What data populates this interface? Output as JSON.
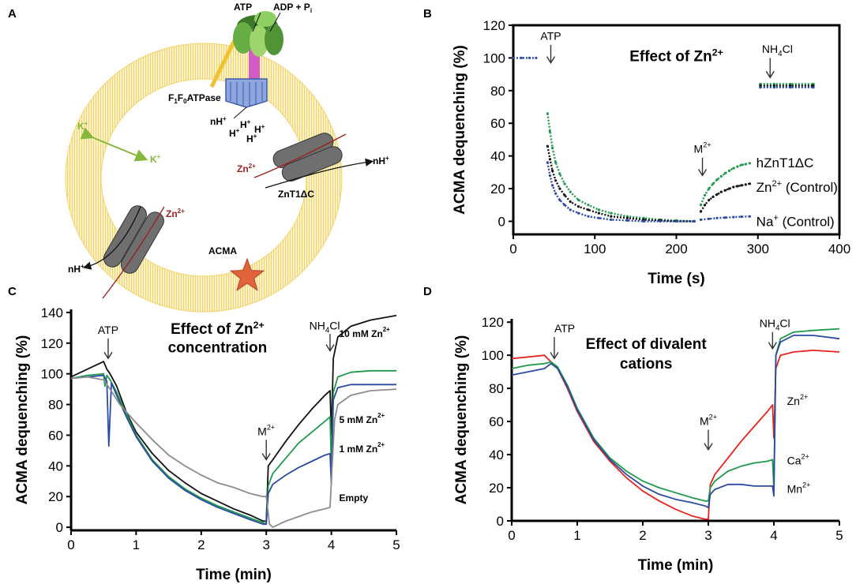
{
  "panel_a": {
    "label": "A",
    "atp": "ATP",
    "adp": "ADP + P",
    "adp_sub": "i",
    "f1f0_main": "F",
    "f1f0_sub1": "1",
    "f1f0_mid": "F",
    "f1f0_sub2": "0",
    "f1f0_rest": "ATPase",
    "nh_plus": "nH",
    "h_plus": "H",
    "k_plus": "K",
    "zn2": "Zn",
    "sup_plus": "+",
    "sup_2plus": "2+",
    "znt1": "ZnT1ΔC",
    "acma": "ACMA"
  },
  "chart_data": [
    {
      "panel": "B",
      "type": "scatter",
      "title": "Effect of Zn²⁺",
      "title_main": "Effect of Zn",
      "title_sup": "2+",
      "xlabel": "Time (s)",
      "ylabel": "ACMA dequenching (%)",
      "xlim": [
        0,
        400
      ],
      "ylim": [
        -8,
        120
      ],
      "xticks": [
        "0",
        "100",
        "200",
        "300",
        "400"
      ],
      "yticks": [
        "0",
        "20",
        "40",
        "60",
        "80",
        "100",
        "120"
      ],
      "annotations": {
        "atp": "ATP",
        "m2_main": "M",
        "m2_sup": "2+",
        "nh4_a": "NH",
        "nh4_sub": "4",
        "nh4_b": "Cl"
      },
      "series": [
        {
          "name": "hZnT1ΔC",
          "legend_main": "hZnT1ΔC",
          "legend_sup": "",
          "legend_tail": "",
          "color": "#1f9a4b",
          "segments": [
            {
              "x": [
                42,
                45,
                48,
                52,
                57,
                63,
                70,
                80,
                92,
                105,
                120,
                140,
                160,
                180,
                200,
                222
              ],
              "y": [
                66,
                55,
                45,
                36,
                29,
                23,
                18,
                13,
                10,
                7,
                5,
                3,
                2,
                1,
                0.5,
                0
              ]
            },
            {
              "x": [
                230,
                235,
                240,
                245,
                250,
                255,
                260,
                265,
                270,
                275,
                280,
                285,
                290
              ],
              "y": [
                10,
                16,
                20,
                23,
                25.5,
                27.5,
                29.5,
                31,
                32.5,
                33.5,
                34.5,
                35,
                35.5
              ]
            },
            {
              "x": [
                303,
                320,
                340,
                368
              ],
              "y": [
                84,
                84,
                84,
                84
              ]
            }
          ]
        },
        {
          "name": "Zn²⁺ (Control)",
          "legend_main": "Zn",
          "legend_sup": "2+",
          "legend_tail": " (Control)",
          "color": "#111111",
          "segments": [
            {
              "x": [
                42,
                45,
                48,
                52,
                57,
                63,
                70,
                80,
                92,
                105,
                120,
                140,
                160,
                180,
                200,
                222
              ],
              "y": [
                46,
                38,
                31,
                25,
                20,
                16,
                12,
                9,
                7,
                5,
                3,
                2,
                1,
                0.5,
                0,
                0
              ]
            },
            {
              "x": [
                230,
                235,
                240,
                245,
                250,
                255,
                260,
                265,
                270,
                275,
                280,
                285,
                290
              ],
              "y": [
                6,
                10,
                13,
                15,
                16.5,
                18,
                19,
                20,
                21,
                21.5,
                22,
                22.5,
                23
              ]
            },
            {
              "x": [
                303,
                320,
                340,
                368
              ],
              "y": [
                83,
                83,
                83,
                83
              ]
            }
          ]
        },
        {
          "name": "Na⁺ (Control)",
          "legend_main": "Na",
          "legend_sup": "+",
          "legend_tail": " (Control)",
          "color": "#2b4aa3",
          "segments": [
            {
              "x": [
                0,
                10,
                20,
                28
              ],
              "y": [
                100,
                100,
                100,
                100
              ]
            },
            {
              "x": [
                42,
                45,
                48,
                52,
                57,
                63,
                70,
                80,
                92,
                105,
                120,
                140,
                160,
                180,
                200,
                222
              ],
              "y": [
                36,
                28,
                22,
                17,
                13,
                10,
                7,
                5,
                3,
                2,
                1,
                0.5,
                0,
                0,
                0,
                0
              ]
            },
            {
              "x": [
                230,
                240,
                250,
                260,
                270,
                280,
                290
              ],
              "y": [
                1,
                1.5,
                2,
                2.3,
                2.6,
                2.8,
                3
              ]
            },
            {
              "x": [
                303,
                320,
                340,
                368
              ],
              "y": [
                82,
                82,
                82,
                82
              ]
            }
          ]
        }
      ]
    },
    {
      "panel": "C",
      "type": "line",
      "title": "Effect of Zn²⁺ concentration",
      "title_main": "Effect of Zn",
      "title_sup": "2+",
      "title_line2": "concentration",
      "xlabel": "Time (min)",
      "ylabel": "ACMA dequenching (%)",
      "xlim": [
        0,
        5
      ],
      "ylim": [
        -2,
        142
      ],
      "xticks": [
        "0",
        "1",
        "2",
        "3",
        "4",
        "5"
      ],
      "yticks": [
        "0",
        "20",
        "40",
        "60",
        "80",
        "100",
        "120",
        "140"
      ],
      "annotations": {
        "atp": "ATP",
        "m2_main": "M",
        "m2_sup": "2+",
        "nh4_a": "NH",
        "nh4_sub": "4",
        "nh4_b": "Cl"
      },
      "series": [
        {
          "name": "10 mM Zn²⁺",
          "legend_main": "10 mM Zn",
          "legend_sup": "2+",
          "color": "#111111",
          "x": [
            0,
            0.25,
            0.5,
            0.55,
            0.6,
            0.7,
            0.85,
            1.0,
            1.25,
            1.5,
            1.75,
            2.0,
            2.25,
            2.5,
            2.75,
            2.95,
            3.0,
            3.03,
            3.1,
            3.3,
            3.5,
            3.7,
            3.9,
            3.98,
            4.0,
            4.03,
            4.1,
            4.3,
            4.6,
            5.0
          ],
          "y": [
            98,
            103,
            108,
            103,
            100,
            92,
            75,
            62,
            48,
            37,
            29,
            22,
            17,
            12,
            8,
            4,
            4,
            40,
            44,
            56,
            67,
            77,
            86,
            89,
            60,
            110,
            124,
            131,
            135,
            138
          ]
        },
        {
          "name": "5 mM Zn²⁺",
          "legend_main": "5 mM Zn",
          "legend_sup": "2+",
          "color": "#1f9a4b",
          "x": [
            0,
            0.25,
            0.5,
            0.52,
            0.55,
            0.6,
            0.7,
            0.85,
            1.0,
            1.25,
            1.5,
            1.75,
            2.0,
            2.25,
            2.5,
            2.75,
            2.95,
            3.0,
            3.03,
            3.1,
            3.3,
            3.5,
            3.7,
            3.9,
            3.98,
            4.0,
            4.03,
            4.1,
            4.3,
            4.6,
            5.0
          ],
          "y": [
            97,
            99,
            100,
            92,
            99,
            96,
            88,
            74,
            60,
            44,
            33,
            25,
            19,
            14,
            10,
            6,
            3,
            2,
            27,
            35,
            45,
            55,
            62,
            69,
            72,
            40,
            88,
            98,
            101,
            102,
            102
          ]
        },
        {
          "name": "1 mM Zn²⁺",
          "legend_main": "1 mM Zn",
          "legend_sup": "2+",
          "color": "#2b4aa3",
          "x": [
            0,
            0.25,
            0.5,
            0.55,
            0.58,
            0.62,
            0.7,
            0.85,
            1.0,
            1.25,
            1.5,
            1.75,
            2.0,
            2.25,
            2.5,
            2.75,
            2.95,
            3.0,
            3.03,
            3.1,
            3.3,
            3.5,
            3.7,
            3.9,
            3.98,
            4.0,
            4.03,
            4.1,
            4.3,
            4.6,
            5.0
          ],
          "y": [
            97,
            98,
            99,
            95,
            53,
            94,
            86,
            72,
            59,
            43,
            32,
            24,
            18,
            13,
            9,
            5,
            2,
            2,
            22,
            28,
            34,
            39,
            43,
            47,
            48,
            28,
            83,
            91,
            93,
            93,
            93
          ]
        },
        {
          "name": "Empty",
          "legend_main": "Empty",
          "legend_sup": "",
          "color": "#8c8c8c",
          "x": [
            0,
            0.25,
            0.5,
            0.6,
            0.75,
            1.0,
            1.25,
            1.5,
            1.75,
            2.0,
            2.25,
            2.5,
            2.75,
            2.95,
            3.0,
            3.05,
            3.1,
            3.3,
            3.5,
            3.7,
            3.9,
            3.98,
            4.0,
            4.05,
            4.1,
            4.3,
            4.6,
            5.0
          ],
          "y": [
            97,
            98,
            96,
            90,
            80,
            68,
            57,
            47,
            40,
            34,
            29,
            26,
            22,
            20,
            20,
            2,
            0,
            4,
            7,
            10,
            12,
            13,
            30,
            70,
            80,
            86,
            89,
            90
          ]
        }
      ]
    },
    {
      "panel": "D",
      "type": "line",
      "title": "Effect of divalent cations",
      "title_line1": "Effect of divalent",
      "title_line2": "cations",
      "xlabel": "Time (min)",
      "ylabel": "ACMA dequenching (%)",
      "xlim": [
        0,
        5
      ],
      "ylim": [
        0,
        122
      ],
      "xticks": [
        "0",
        "1",
        "2",
        "3",
        "4",
        "5"
      ],
      "yticks": [
        "0",
        "20",
        "40",
        "60",
        "80",
        "100",
        "120"
      ],
      "annotations": {
        "atp": "ATP",
        "m2_main": "M",
        "m2_sup": "2+",
        "nh4_a": "NH",
        "nh4_sub": "4",
        "nh4_b": "Cl"
      },
      "series": [
        {
          "name": "Zn²⁺",
          "legend_main": "Zn",
          "legend_sup": "2+",
          "color": "#e8231d",
          "x": [
            0,
            0.25,
            0.5,
            0.6,
            0.7,
            0.85,
            1.0,
            1.25,
            1.5,
            1.75,
            2.0,
            2.25,
            2.5,
            2.75,
            2.95,
            3.0,
            3.03,
            3.1,
            3.3,
            3.5,
            3.7,
            3.9,
            3.98,
            4.0,
            4.03,
            4.1,
            4.3,
            4.6,
            5.0
          ],
          "y": [
            98,
            99,
            100,
            96,
            92,
            80,
            66,
            48,
            36,
            26,
            18,
            12,
            7,
            3,
            1,
            1,
            22,
            28,
            38,
            48,
            57,
            66,
            70,
            50,
            92,
            100,
            102,
            103,
            102
          ]
        },
        {
          "name": "Ca²⁺",
          "legend_main": "Ca",
          "legend_sup": "2+",
          "color": "#1f9a4b",
          "x": [
            0,
            0.25,
            0.5,
            0.6,
            0.7,
            0.85,
            1.0,
            1.25,
            1.5,
            1.75,
            2.0,
            2.25,
            2.5,
            2.75,
            2.95,
            3.0,
            3.03,
            3.1,
            3.3,
            3.5,
            3.7,
            3.9,
            3.98,
            4.0,
            4.03,
            4.1,
            4.3,
            4.6,
            5.0
          ],
          "y": [
            92,
            94,
            95,
            96,
            93,
            82,
            68,
            50,
            38,
            30,
            24,
            20,
            17,
            14,
            12,
            12,
            20,
            24,
            30,
            33,
            35,
            36,
            37,
            20,
            100,
            110,
            114,
            115,
            116
          ]
        },
        {
          "name": "Mn²⁺",
          "legend_main": "Mn",
          "legend_sup": "2+",
          "color": "#2b4aa3",
          "x": [
            0,
            0.25,
            0.5,
            0.6,
            0.7,
            0.85,
            1.0,
            1.25,
            1.5,
            1.75,
            2.0,
            2.25,
            2.5,
            2.75,
            2.95,
            3.0,
            3.03,
            3.1,
            3.3,
            3.5,
            3.7,
            3.9,
            3.98,
            4.0,
            4.03,
            4.1,
            4.3,
            4.6,
            5.0
          ],
          "y": [
            88,
            90,
            92,
            95,
            92,
            81,
            67,
            49,
            37,
            28,
            21,
            16,
            13,
            11,
            9,
            8,
            16,
            19,
            22,
            22,
            21,
            21,
            21,
            15,
            100,
            108,
            112,
            112,
            110
          ]
        }
      ]
    }
  ]
}
